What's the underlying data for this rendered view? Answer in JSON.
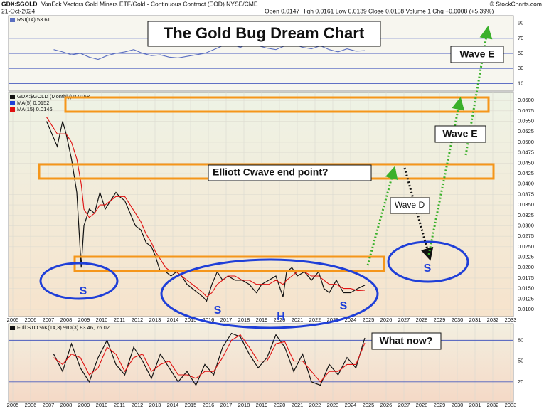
{
  "header": {
    "symbol": "GDX:$GOLD",
    "description": "VanEck Vectors Gold Miners ETF/Gold - Continuous Contract (EOD) NYSE/CME",
    "date": "21-Oct-2024",
    "quote": "Open 0.0147  High 0.0161  Low 0.0139  Close 0.0158  Volume 1  Chg +0.0008 (+5.39%)",
    "copyright": "© StockCharts.com"
  },
  "annotations": {
    "title": "The Gold Bug Dream Chart",
    "elliott": "Elliott Cwave end point?",
    "wave_d": "Wave D",
    "wave_e_upper": "Wave E",
    "wave_e_lower": "Wave E",
    "what_now": "What now?",
    "s_labels": [
      "S",
      "S",
      "S",
      "S"
    ],
    "h_label": "H"
  },
  "chart_data": [
    {
      "type": "line",
      "xlim": [
        2004.76,
        2033.16
      ],
      "ylim": [
        0,
        100
      ],
      "yticks": [
        10,
        30,
        50,
        70,
        90
      ],
      "grid": true,
      "x": [
        2007.3,
        2007.8,
        2008.3,
        2008.8,
        2009.3,
        2009.8,
        2010.3,
        2010.8,
        2011.3,
        2011.8,
        2012.3,
        2012.8,
        2013.3,
        2013.8,
        2014.3,
        2014.8,
        2015.3,
        2015.8,
        2016.3,
        2016.8,
        2017.3,
        2017.8,
        2018.3,
        2018.8,
        2019.3,
        2019.8,
        2020.3,
        2020.8,
        2021.3,
        2021.8,
        2022.3,
        2022.8,
        2023.3,
        2023.8,
        2024.3,
        2024.8
      ],
      "series": [
        {
          "name": "RSI(14) 53.61",
          "color": "#5b6fc0",
          "values": [
            55,
            52,
            48,
            50,
            45,
            42,
            47,
            50,
            52,
            55,
            50,
            47,
            48,
            45,
            44,
            46,
            48,
            50,
            55,
            60,
            62,
            58,
            63,
            60,
            57,
            55,
            60,
            62,
            58,
            56,
            60,
            55,
            52,
            56,
            53,
            53.61
          ]
        }
      ]
    },
    {
      "type": "line",
      "xlim": [
        2004.76,
        2033.16
      ],
      "ylim": [
        0.0083,
        0.0619
      ],
      "grid": true,
      "yticks": [
        {
          "value": 0.01,
          "label": "0.0100"
        },
        {
          "value": 0.0125,
          "label": "0.0125"
        },
        {
          "value": 0.015,
          "label": "0.0150"
        },
        {
          "value": 0.0175,
          "label": "0.0175"
        },
        {
          "value": 0.02,
          "label": "0.0200"
        },
        {
          "value": 0.0225,
          "label": "0.0225"
        },
        {
          "value": 0.025,
          "label": "0.0250"
        },
        {
          "value": 0.0275,
          "label": "0.0275"
        },
        {
          "value": 0.03,
          "label": "0.0300"
        },
        {
          "value": 0.0325,
          "label": "0.0325"
        },
        {
          "value": 0.035,
          "label": "0.0350"
        },
        {
          "value": 0.0375,
          "label": "0.0375"
        },
        {
          "value": 0.04,
          "label": "0.0400"
        },
        {
          "value": 0.0425,
          "label": "0.0425"
        },
        {
          "value": 0.045,
          "label": "0.0450"
        },
        {
          "value": 0.0475,
          "label": "0.0475"
        },
        {
          "value": 0.05,
          "label": "0.0500"
        },
        {
          "value": 0.0525,
          "label": "0.0525"
        },
        {
          "value": 0.055,
          "label": "0.0550"
        },
        {
          "value": 0.0575,
          "label": "0.0575"
        },
        {
          "value": 0.06,
          "label": "0.0600"
        }
      ],
      "xticks": [
        2005,
        2006,
        2007,
        2008,
        2009,
        2010,
        2011,
        2012,
        2013,
        2014,
        2015,
        2016,
        2017,
        2018,
        2019,
        2020,
        2021,
        2022,
        2023,
        2024,
        2025,
        2026,
        2027,
        2028,
        2029,
        2030,
        2031,
        2032,
        2033
      ],
      "x": [
        2006.9,
        2007.2,
        2007.5,
        2007.8,
        2008.0,
        2008.3,
        2008.6,
        2008.85,
        2009.0,
        2009.3,
        2009.6,
        2009.9,
        2010.2,
        2010.5,
        2010.8,
        2011.0,
        2011.3,
        2011.6,
        2011.9,
        2012.2,
        2012.5,
        2012.8,
        2013.0,
        2013.3,
        2013.6,
        2013.9,
        2014.2,
        2014.5,
        2014.8,
        2015.1,
        2015.4,
        2015.7,
        2015.9,
        2016.2,
        2016.5,
        2016.8,
        2017.1,
        2017.5,
        2017.9,
        2018.3,
        2018.7,
        2019.0,
        2019.4,
        2019.8,
        2020.2,
        2020.4,
        2020.7,
        2021.0,
        2021.4,
        2021.8,
        2022.2,
        2022.5,
        2022.8,
        2023.2,
        2023.6,
        2024.0,
        2024.4,
        2024.8
      ],
      "legend_note": "MA(5) 0.0152",
      "series": [
        {
          "name": "GDX:$GOLD (Monthly) 0.0158",
          "color": "#111111",
          "values": [
            0.055,
            0.052,
            0.049,
            0.055,
            0.052,
            0.046,
            0.038,
            0.02,
            0.03,
            0.034,
            0.033,
            0.038,
            0.034,
            0.036,
            0.038,
            0.037,
            0.036,
            0.033,
            0.03,
            0.029,
            0.026,
            0.025,
            0.023,
            0.019,
            0.019,
            0.018,
            0.019,
            0.018,
            0.016,
            0.015,
            0.014,
            0.013,
            0.012,
            0.016,
            0.019,
            0.017,
            0.018,
            0.017,
            0.017,
            0.016,
            0.014,
            0.016,
            0.017,
            0.018,
            0.013,
            0.019,
            0.02,
            0.018,
            0.019,
            0.017,
            0.019,
            0.015,
            0.014,
            0.017,
            0.014,
            0.014,
            0.015,
            0.0158
          ]
        },
        {
          "name": "MA(15) 0.0146",
          "color": "#e01010",
          "values": [
            0.056,
            0.054,
            0.052,
            0.052,
            0.052,
            0.05,
            0.046,
            0.04,
            0.034,
            0.032,
            0.033,
            0.035,
            0.035,
            0.036,
            0.037,
            0.037,
            0.037,
            0.035,
            0.033,
            0.031,
            0.028,
            0.026,
            0.024,
            0.022,
            0.02,
            0.019,
            0.019,
            0.018,
            0.017,
            0.016,
            0.015,
            0.014,
            0.013,
            0.014,
            0.016,
            0.017,
            0.018,
            0.018,
            0.017,
            0.017,
            0.016,
            0.016,
            0.016,
            0.017,
            0.016,
            0.017,
            0.018,
            0.019,
            0.019,
            0.018,
            0.018,
            0.017,
            0.016,
            0.016,
            0.015,
            0.015,
            0.0145,
            0.0146
          ]
        }
      ]
    },
    {
      "type": "line",
      "title": "Full STO %K(14,3) %D(3) 83.46, 76.02",
      "xlim": [
        2004.76,
        2033.16
      ],
      "ylim": [
        -9,
        104
      ],
      "yticks": [
        20,
        50,
        80
      ],
      "grid": true,
      "xticks": [
        2005,
        2006,
        2007,
        2008,
        2009,
        2010,
        2011,
        2012,
        2013,
        2014,
        2015,
        2016,
        2017,
        2018,
        2019,
        2020,
        2021,
        2022,
        2023,
        2024,
        2025,
        2026,
        2027,
        2028,
        2029,
        2030,
        2031,
        2032,
        2033
      ],
      "x": [
        2007.3,
        2007.8,
        2008.3,
        2008.8,
        2009.3,
        2009.8,
        2010.3,
        2010.8,
        2011.3,
        2011.8,
        2012.3,
        2012.8,
        2013.3,
        2013.8,
        2014.3,
        2014.8,
        2015.3,
        2015.8,
        2016.3,
        2016.8,
        2017.3,
        2017.8,
        2018.3,
        2018.8,
        2019.3,
        2019.8,
        2020.3,
        2020.8,
        2021.3,
        2021.8,
        2022.3,
        2022.8,
        2023.3,
        2023.8,
        2024.3,
        2024.8
      ],
      "series": [
        {
          "color": "#111111",
          "values": [
            60,
            35,
            75,
            40,
            20,
            55,
            80,
            45,
            30,
            70,
            50,
            25,
            60,
            40,
            20,
            35,
            15,
            45,
            30,
            70,
            90,
            85,
            60,
            40,
            55,
            88,
            70,
            35,
            60,
            20,
            15,
            45,
            30,
            55,
            40,
            83.46
          ]
        },
        {
          "color": "#e01010",
          "values": [
            55,
            45,
            60,
            55,
            30,
            40,
            70,
            60,
            35,
            55,
            60,
            35,
            45,
            50,
            30,
            30,
            25,
            35,
            35,
            55,
            80,
            88,
            70,
            50,
            50,
            75,
            78,
            50,
            50,
            35,
            20,
            35,
            35,
            45,
            45,
            76.02
          ]
        }
      ]
    }
  ]
}
